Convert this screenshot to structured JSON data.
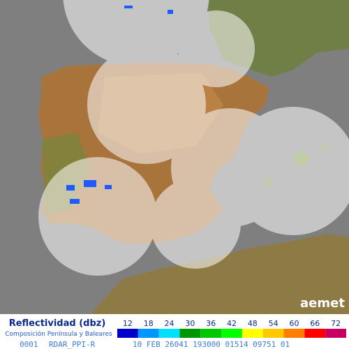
{
  "legend": {
    "title": "Reflectividad (dbz)",
    "subtitle": "Composición Península y Baleares",
    "items": [
      {
        "value": 12,
        "color": "#0000c8"
      },
      {
        "value": 18,
        "color": "#0096ff"
      },
      {
        "value": 24,
        "color": "#00e1ff"
      },
      {
        "value": 30,
        "color": "#009600"
      },
      {
        "value": 36,
        "color": "#00c800"
      },
      {
        "value": 42,
        "color": "#00ff00"
      },
      {
        "value": 48,
        "color": "#ffff00"
      },
      {
        "value": 54,
        "color": "#ffc800"
      },
      {
        "value": 60,
        "color": "#ff7d00"
      },
      {
        "value": 66,
        "color": "#ff0000"
      },
      {
        "value": 72,
        "color": "#c80064"
      }
    ]
  },
  "logo": "aemet",
  "footer": [
    "0001",
    "RDAR_PPI-R",
    "10 FEB 26041 193000 01514 09751 01"
  ]
}
